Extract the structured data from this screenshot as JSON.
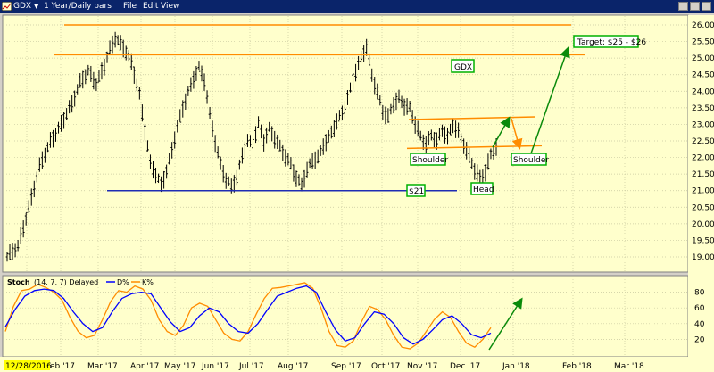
{
  "window": {
    "symbol": "GDX",
    "period": "1 Year/Daily bars",
    "menu": [
      "File",
      "Edit",
      "View"
    ]
  },
  "chart_data": [
    {
      "type": "candlestick",
      "title": "GDX",
      "ylim": [
        18.5,
        26.3
      ],
      "yticks": [
        "19.00",
        "19.50",
        "20.00",
        "20.50",
        "21.00",
        "21.50",
        "22.00",
        "22.50",
        "23.00",
        "23.50",
        "24.00",
        "24.50",
        "25.00",
        "25.50",
        "26.00"
      ],
      "xticks": [
        "12/28/2016",
        "eb '17",
        "Mar '17",
        "Apr '17",
        "May '17",
        "Jun '17",
        "Jul '17",
        "Aug '17",
        "Sep '17",
        "Oct '17",
        "Nov '17",
        "Dec '17",
        "Jan '18",
        "Feb '18",
        "Mar '18"
      ],
      "price_path": [
        [
          0,
          19.0
        ],
        [
          4,
          19.3
        ],
        [
          8,
          20.5
        ],
        [
          12,
          21.7
        ],
        [
          16,
          22.5
        ],
        [
          20,
          23.0
        ],
        [
          24,
          23.6
        ],
        [
          27,
          24.3
        ],
        [
          30,
          24.6
        ],
        [
          33,
          24.2
        ],
        [
          36,
          24.8
        ],
        [
          38,
          25.3
        ],
        [
          40,
          25.6
        ],
        [
          43,
          25.3
        ],
        [
          46,
          24.9
        ],
        [
          49,
          23.9
        ],
        [
          51,
          22.8
        ],
        [
          53,
          21.8
        ],
        [
          55,
          21.5
        ],
        [
          57,
          21.2
        ],
        [
          59,
          21.6
        ],
        [
          61,
          22.2
        ],
        [
          63,
          22.9
        ],
        [
          65,
          23.5
        ],
        [
          67,
          24.0
        ],
        [
          69,
          24.4
        ],
        [
          71,
          24.7
        ],
        [
          73,
          24.3
        ],
        [
          75,
          23.3
        ],
        [
          77,
          22.5
        ],
        [
          79,
          21.8
        ],
        [
          81,
          21.3
        ],
        [
          83,
          21.1
        ],
        [
          85,
          21.4
        ],
        [
          87,
          22.1
        ],
        [
          89,
          22.5
        ],
        [
          91,
          22.4
        ],
        [
          93,
          23.0
        ],
        [
          95,
          22.5
        ],
        [
          97,
          22.9
        ],
        [
          99,
          22.6
        ],
        [
          101,
          22.3
        ],
        [
          103,
          22.0
        ],
        [
          105,
          21.8
        ],
        [
          107,
          21.4
        ],
        [
          109,
          21.2
        ],
        [
          111,
          21.6
        ],
        [
          113,
          21.9
        ],
        [
          115,
          22.0
        ],
        [
          117,
          22.4
        ],
        [
          119,
          22.6
        ],
        [
          121,
          22.9
        ],
        [
          123,
          23.2
        ],
        [
          125,
          23.5
        ],
        [
          127,
          24.1
        ],
        [
          129,
          24.6
        ],
        [
          131,
          25.0
        ],
        [
          133,
          25.3
        ],
        [
          135,
          24.5
        ],
        [
          137,
          24.0
        ],
        [
          139,
          23.4
        ],
        [
          141,
          23.2
        ],
        [
          143,
          23.6
        ],
        [
          145,
          23.8
        ],
        [
          147,
          23.6
        ],
        [
          149,
          23.5
        ],
        [
          151,
          23.0
        ],
        [
          153,
          22.6
        ],
        [
          155,
          22.4
        ],
        [
          157,
          22.7
        ],
        [
          159,
          22.5
        ],
        [
          161,
          22.8
        ],
        [
          163,
          22.6
        ],
        [
          165,
          23.0
        ],
        [
          167,
          22.8
        ],
        [
          169,
          22.4
        ],
        [
          171,
          22.0
        ],
        [
          173,
          21.6
        ],
        [
          175,
          21.4
        ],
        [
          177,
          21.6
        ],
        [
          179,
          22.1
        ],
        [
          181,
          22.3
        ]
      ],
      "resistance_levels": [
        26.0,
        25.1,
        23.2,
        22.3
      ],
      "support_level": 21.0,
      "annotations": [
        "Target: $25 - $26",
        "GDX",
        "Shoulder",
        "Shoulder",
        "Head",
        "$21"
      ]
    },
    {
      "type": "line",
      "title": "Stoch",
      "params": "(14, 7, 7) Delayed",
      "ylim": [
        0,
        100
      ],
      "yticks": [
        "20",
        "40",
        "60",
        "80"
      ],
      "series": [
        {
          "name": "D%",
          "color": "#0000ff",
          "values": [
            [
              0,
              36
            ],
            [
              6,
              58
            ],
            [
              12,
              75
            ],
            [
              18,
              82
            ],
            [
              24,
              84
            ],
            [
              30,
              82
            ],
            [
              36,
              72
            ],
            [
              42,
              55
            ],
            [
              48,
              40
            ],
            [
              54,
              30
            ],
            [
              60,
              35
            ],
            [
              66,
              55
            ],
            [
              72,
              72
            ],
            [
              78,
              78
            ],
            [
              84,
              80
            ],
            [
              90,
              78
            ],
            [
              96,
              60
            ],
            [
              102,
              42
            ],
            [
              108,
              30
            ],
            [
              114,
              35
            ],
            [
              120,
              50
            ],
            [
              126,
              60
            ],
            [
              132,
              55
            ],
            [
              138,
              40
            ],
            [
              144,
              30
            ],
            [
              150,
              28
            ],
            [
              156,
              40
            ],
            [
              162,
              58
            ],
            [
              168,
              75
            ],
            [
              174,
              80
            ],
            [
              180,
              85
            ],
            [
              186,
              88
            ],
            [
              192,
              80
            ],
            [
              198,
              55
            ],
            [
              204,
              32
            ],
            [
              210,
              18
            ],
            [
              216,
              22
            ],
            [
              222,
              40
            ],
            [
              228,
              55
            ],
            [
              234,
              52
            ],
            [
              240,
              40
            ],
            [
              246,
              22
            ],
            [
              252,
              14
            ],
            [
              258,
              20
            ],
            [
              264,
              32
            ],
            [
              270,
              45
            ],
            [
              276,
              50
            ],
            [
              282,
              40
            ],
            [
              288,
              26
            ],
            [
              294,
              22
            ],
            [
              300,
              28
            ]
          ]
        },
        {
          "name": "K%",
          "color": "#ff8c00",
          "values": [
            [
              0,
              30
            ],
            [
              5,
              62
            ],
            [
              10,
              82
            ],
            [
              15,
              84
            ],
            [
              20,
              90
            ],
            [
              25,
              86
            ],
            [
              30,
              80
            ],
            [
              35,
              70
            ],
            [
              40,
              48
            ],
            [
              45,
              30
            ],
            [
              50,
              22
            ],
            [
              55,
              25
            ],
            [
              60,
              45
            ],
            [
              65,
              68
            ],
            [
              70,
              82
            ],
            [
              75,
              80
            ],
            [
              80,
              88
            ],
            [
              85,
              84
            ],
            [
              90,
              70
            ],
            [
              95,
              45
            ],
            [
              100,
              30
            ],
            [
              105,
              25
            ],
            [
              110,
              38
            ],
            [
              115,
              60
            ],
            [
              120,
              66
            ],
            [
              125,
              62
            ],
            [
              130,
              45
            ],
            [
              135,
              28
            ],
            [
              140,
              20
            ],
            [
              145,
              18
            ],
            [
              150,
              30
            ],
            [
              155,
              52
            ],
            [
              160,
              72
            ],
            [
              165,
              85
            ],
            [
              170,
              86
            ],
            [
              175,
              88
            ],
            [
              180,
              90
            ],
            [
              185,
              92
            ],
            [
              190,
              85
            ],
            [
              195,
              60
            ],
            [
              200,
              30
            ],
            [
              205,
              12
            ],
            [
              210,
              10
            ],
            [
              215,
              18
            ],
            [
              220,
              42
            ],
            [
              225,
              62
            ],
            [
              230,
              58
            ],
            [
              235,
              45
            ],
            [
              240,
              25
            ],
            [
              245,
              10
            ],
            [
              250,
              8
            ],
            [
              255,
              15
            ],
            [
              260,
              30
            ],
            [
              265,
              45
            ],
            [
              270,
              55
            ],
            [
              275,
              48
            ],
            [
              280,
              30
            ],
            [
              285,
              15
            ],
            [
              290,
              10
            ],
            [
              295,
              20
            ],
            [
              300,
              35
            ]
          ]
        }
      ]
    }
  ]
}
